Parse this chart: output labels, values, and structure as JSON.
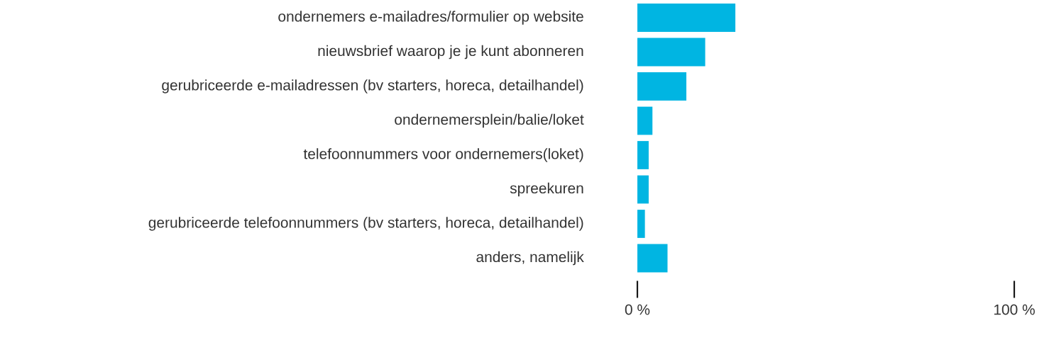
{
  "chart_data": {
    "type": "bar",
    "orientation": "horizontal",
    "color": "#00b5e2",
    "categories": [
      "ondernemers e-mailadres/formulier op website",
      "nieuwsbrief waarop je je kunt abonneren",
      "gerubriceerde e-mailadressen (bv starters, horeca, detailhandel)",
      "ondernemersplein/balie/loket",
      "telefoonnummers voor ondernemers(loket)",
      "spreekuren",
      "gerubriceerde telefoonnummers (bv starters, horeca, detailhandel)",
      "anders, namelijk"
    ],
    "values": [
      26,
      18,
      13,
      4,
      3,
      3,
      2,
      8
    ],
    "xlim": [
      0,
      100
    ],
    "xticks": [
      {
        "value": 0,
        "label": "0 %"
      },
      {
        "value": 100,
        "label": "100 %"
      }
    ]
  }
}
